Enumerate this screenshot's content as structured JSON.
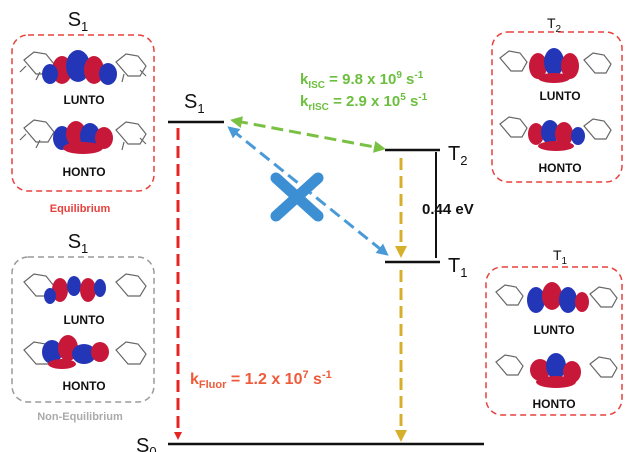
{
  "colors": {
    "equilibrium_box": "#e8413c",
    "nonequilibrium_box": "#9a9a9a",
    "triplet_box": "#e8413c",
    "fluor_arrow": "#e52424",
    "isc_arrow": "#7ac143",
    "blocked_arrow": "#4a9ad8",
    "cross": "#3d8fd4",
    "t2_t1_arrow": "#d6b02a",
    "rate_isc_text": "#6cbf3e",
    "rate_fluor_text": "#ef5a3a",
    "equilibrium_text": "#e8413c",
    "nonequilibrium_text": "#aaaaaa",
    "orbital_red": "#c8183a",
    "orbital_blue": "#2436b8"
  },
  "levels": {
    "s1": {
      "label": "S",
      "sub": "1"
    },
    "t2": {
      "label": "T",
      "sub": "2"
    },
    "t1": {
      "label": "T",
      "sub": "1"
    },
    "s0": {
      "label": "S",
      "sub": "0"
    }
  },
  "gap": {
    "text": "0.44 eV"
  },
  "rates": {
    "isc": {
      "k": "k",
      "sub": "ISC",
      "text": " = 9.8 x 10",
      "exp": "9",
      "unit": " s",
      "unit_exp": "-1"
    },
    "risc": {
      "k": "k",
      "sub": "rISC",
      "text": " = 2.9 x 10",
      "exp": "5",
      "unit": " s",
      "unit_exp": "-1"
    },
    "fluor": {
      "k": "k",
      "sub": "Fluor",
      "text": " = 1.2 x 10",
      "exp": "7",
      "unit": " s",
      "unit_exp": "-1"
    }
  },
  "panels": {
    "s1_eq": {
      "title": "S",
      "title_sub": "1",
      "top_label": "LUNTO",
      "bottom_label": "HONTO",
      "caption": "Equilibrium"
    },
    "s1_neq": {
      "title": "S",
      "title_sub": "1",
      "top_label": "LUNTO",
      "bottom_label": "HONTO",
      "caption": "Non-Equilibrium"
    },
    "t2": {
      "title": "T",
      "title_sub": "2",
      "top_label": "LUNTO",
      "bottom_label": "HONTO"
    },
    "t1": {
      "title": "T",
      "title_sub": "1",
      "top_label": "LUNTO",
      "bottom_label": "HONTO"
    }
  }
}
